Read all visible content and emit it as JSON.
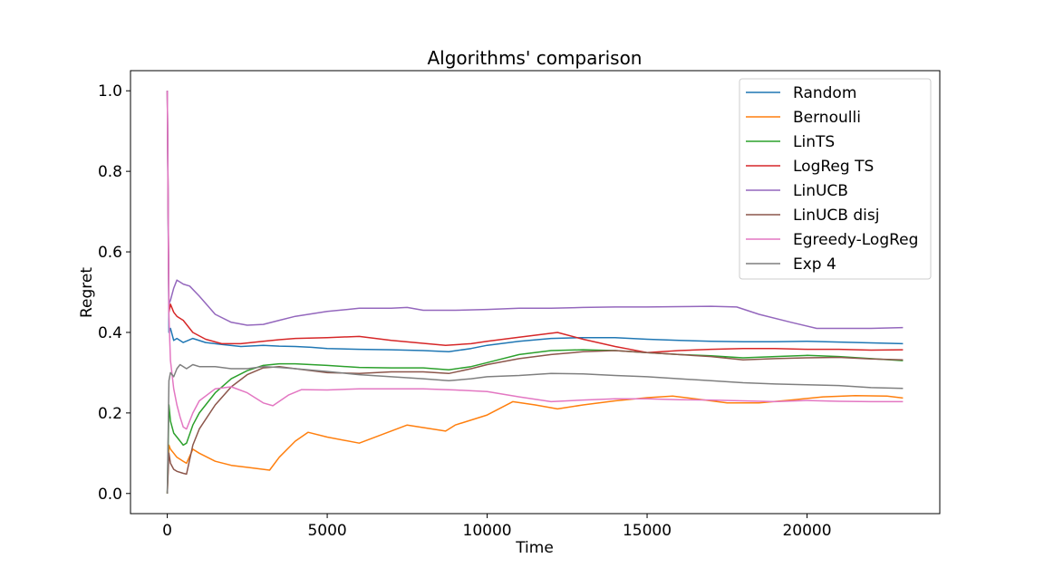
{
  "chart_data": {
    "type": "line",
    "title": "Algorithms' comparison",
    "xlabel": "Time",
    "ylabel": "Regret",
    "xlim": [
      -1150,
      24150
    ],
    "ylim": [
      -0.05,
      1.05
    ],
    "xticks": [
      0,
      5000,
      10000,
      15000,
      20000
    ],
    "xtick_labels": [
      "0",
      "5000",
      "10000",
      "15000",
      "20000"
    ],
    "yticks": [
      0.0,
      0.2,
      0.4,
      0.6,
      0.8,
      1.0
    ],
    "ytick_labels": [
      "0.0",
      "0.2",
      "0.4",
      "0.6",
      "0.8",
      "1.0"
    ],
    "grid": false,
    "legend_position": "top-right",
    "series": [
      {
        "name": "Random",
        "color": "#1f77b4",
        "x": [
          0,
          50,
          100,
          200,
          300,
          500,
          800,
          1200,
          1700,
          2300,
          3000,
          3500,
          4000,
          4500,
          5000,
          6000,
          7000,
          8000,
          8800,
          9500,
          10000,
          11000,
          12000,
          13000,
          14000,
          15000,
          16000,
          17000,
          18000,
          19000,
          20000,
          21000,
          22000,
          23000
        ],
        "y": [
          1.0,
          0.4,
          0.41,
          0.38,
          0.385,
          0.375,
          0.385,
          0.375,
          0.37,
          0.365,
          0.368,
          0.366,
          0.365,
          0.363,
          0.36,
          0.358,
          0.357,
          0.355,
          0.352,
          0.36,
          0.368,
          0.378,
          0.385,
          0.387,
          0.387,
          0.383,
          0.38,
          0.378,
          0.377,
          0.377,
          0.378,
          0.376,
          0.374,
          0.372
        ]
      },
      {
        "name": "Bernoulli",
        "color": "#ff7f0e",
        "x": [
          0,
          50,
          100,
          200,
          300,
          500,
          600,
          800,
          1000,
          1500,
          2000,
          2500,
          3200,
          3500,
          4000,
          4400,
          5000,
          6000,
          7500,
          8700,
          9000,
          10000,
          10800,
          11500,
          12200,
          13000,
          14000,
          15000,
          15800,
          16500,
          17500,
          18500,
          19500,
          20500,
          21500,
          22500,
          23000
        ],
        "y": [
          0.0,
          0.12,
          0.11,
          0.1,
          0.09,
          0.08,
          0.075,
          0.11,
          0.1,
          0.08,
          0.07,
          0.065,
          0.058,
          0.09,
          0.13,
          0.152,
          0.14,
          0.125,
          0.17,
          0.155,
          0.17,
          0.195,
          0.228,
          0.22,
          0.21,
          0.22,
          0.23,
          0.238,
          0.242,
          0.235,
          0.225,
          0.225,
          0.232,
          0.24,
          0.243,
          0.242,
          0.237
        ]
      },
      {
        "name": "LinTS",
        "color": "#2ca02c",
        "x": [
          0,
          50,
          100,
          200,
          300,
          500,
          600,
          800,
          1000,
          1500,
          2000,
          2500,
          3000,
          3500,
          4000,
          5000,
          6000,
          7000,
          8000,
          8800,
          9500,
          10000,
          11000,
          12000,
          13000,
          14000,
          15000,
          16000,
          17000,
          18000,
          19000,
          20000,
          21000,
          22000,
          23000
        ],
        "y": [
          0.0,
          0.22,
          0.18,
          0.15,
          0.14,
          0.12,
          0.125,
          0.17,
          0.2,
          0.25,
          0.285,
          0.305,
          0.318,
          0.322,
          0.322,
          0.318,
          0.313,
          0.312,
          0.312,
          0.307,
          0.315,
          0.325,
          0.345,
          0.355,
          0.357,
          0.355,
          0.35,
          0.345,
          0.342,
          0.337,
          0.34,
          0.343,
          0.34,
          0.335,
          0.33
        ]
      },
      {
        "name": "LogReg TS",
        "color": "#d62728",
        "x": [
          0,
          50,
          100,
          200,
          300,
          500,
          800,
          1200,
          1700,
          2300,
          3000,
          3500,
          4000,
          5000,
          6000,
          7000,
          8000,
          8700,
          9500,
          10000,
          11000,
          12200,
          13000,
          14000,
          15000,
          16000,
          17000,
          18000,
          19000,
          20000,
          21000,
          22000,
          23000
        ],
        "y": [
          1.0,
          0.45,
          0.47,
          0.45,
          0.44,
          0.43,
          0.4,
          0.383,
          0.372,
          0.372,
          0.378,
          0.382,
          0.385,
          0.387,
          0.39,
          0.38,
          0.373,
          0.368,
          0.372,
          0.378,
          0.388,
          0.4,
          0.383,
          0.365,
          0.35,
          0.355,
          0.358,
          0.36,
          0.36,
          0.358,
          0.358,
          0.356,
          0.357
        ]
      },
      {
        "name": "LinUCB",
        "color": "#9467bd",
        "x": [
          0,
          50,
          100,
          200,
          300,
          400,
          500,
          700,
          1000,
          1500,
          2000,
          2500,
          3000,
          3500,
          4000,
          5000,
          6000,
          7000,
          7500,
          8000,
          9000,
          10000,
          11000,
          12000,
          13000,
          14000,
          15000,
          16000,
          17000,
          17800,
          18500,
          19500,
          20300,
          21000,
          22000,
          23000
        ],
        "y": [
          1.0,
          0.47,
          0.48,
          0.51,
          0.53,
          0.525,
          0.52,
          0.515,
          0.49,
          0.445,
          0.425,
          0.418,
          0.42,
          0.43,
          0.44,
          0.452,
          0.46,
          0.46,
          0.462,
          0.455,
          0.455,
          0.457,
          0.46,
          0.46,
          0.462,
          0.463,
          0.463,
          0.464,
          0.465,
          0.463,
          0.445,
          0.425,
          0.41,
          0.41,
          0.41,
          0.412
        ]
      },
      {
        "name": "LinUCB disj",
        "color": "#8c564b",
        "x": [
          0,
          50,
          100,
          200,
          300,
          500,
          600,
          800,
          1000,
          1500,
          2000,
          2500,
          3000,
          3500,
          4000,
          5000,
          6000,
          7000,
          8000,
          8800,
          9500,
          10000,
          11000,
          12000,
          13000,
          14000,
          15000,
          16000,
          17000,
          18000,
          19000,
          20000,
          21000,
          22000,
          23000
        ],
        "y": [
          0.0,
          0.1,
          0.075,
          0.06,
          0.055,
          0.05,
          0.048,
          0.12,
          0.16,
          0.22,
          0.265,
          0.295,
          0.312,
          0.315,
          0.31,
          0.3,
          0.298,
          0.302,
          0.302,
          0.298,
          0.31,
          0.32,
          0.335,
          0.345,
          0.352,
          0.355,
          0.35,
          0.345,
          0.34,
          0.332,
          0.335,
          0.337,
          0.338,
          0.334,
          0.332
        ]
      },
      {
        "name": "Egreedy-LogReg",
        "color": "#e377c2",
        "x": [
          0,
          50,
          100,
          200,
          300,
          400,
          500,
          600,
          800,
          1000,
          1500,
          2000,
          2500,
          3000,
          3300,
          3800,
          4200,
          5000,
          6000,
          7000,
          8000,
          9000,
          10000,
          11000,
          12000,
          13000,
          14000,
          15000,
          16000,
          17000,
          18000,
          19000,
          20000,
          21000,
          22000,
          23000
        ],
        "y": [
          1.0,
          0.44,
          0.33,
          0.26,
          0.22,
          0.19,
          0.165,
          0.16,
          0.2,
          0.23,
          0.26,
          0.265,
          0.25,
          0.225,
          0.218,
          0.245,
          0.258,
          0.257,
          0.26,
          0.26,
          0.26,
          0.257,
          0.253,
          0.24,
          0.228,
          0.232,
          0.235,
          0.235,
          0.233,
          0.232,
          0.23,
          0.228,
          0.231,
          0.229,
          0.228,
          0.228
        ]
      },
      {
        "name": "Exp 4",
        "color": "#7f7f7f",
        "x": [
          0,
          50,
          100,
          200,
          300,
          400,
          600,
          800,
          1000,
          1500,
          2000,
          2500,
          3000,
          3500,
          4000,
          5000,
          6000,
          7000,
          8000,
          8800,
          9500,
          10000,
          11000,
          12000,
          13000,
          14000,
          15000,
          16000,
          17000,
          18000,
          19000,
          20000,
          21000,
          22000,
          23000
        ],
        "y": [
          0.0,
          0.28,
          0.3,
          0.29,
          0.31,
          0.32,
          0.31,
          0.32,
          0.315,
          0.315,
          0.31,
          0.31,
          0.315,
          0.313,
          0.31,
          0.303,
          0.295,
          0.29,
          0.285,
          0.28,
          0.285,
          0.29,
          0.293,
          0.298,
          0.297,
          0.293,
          0.29,
          0.285,
          0.28,
          0.275,
          0.272,
          0.27,
          0.268,
          0.263,
          0.261
        ]
      }
    ]
  }
}
